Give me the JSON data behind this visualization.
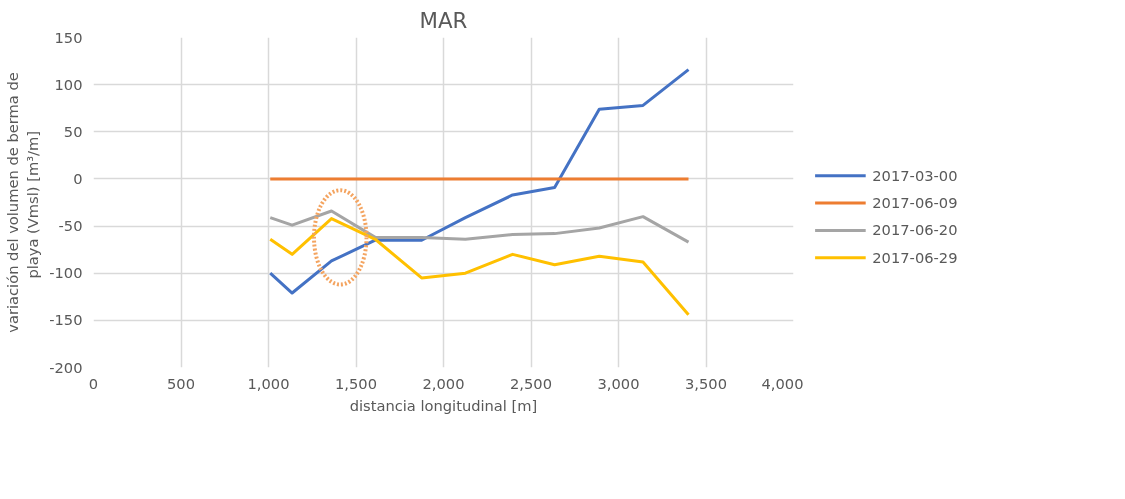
{
  "chart_data": {
    "type": "line",
    "title": "MAR",
    "xlabel": "distancia longitudinal [m]",
    "ylabel": "variación del volumen de berma de playa (Vmsl)  [m³/m]",
    "x": [
      1010,
      1135,
      1360,
      1610,
      1875,
      2125,
      2395,
      2635,
      2890,
      3140,
      3400
    ],
    "series": [
      {
        "name": "2017-03-00",
        "color": "#4472c4",
        "values": [
          -100,
          -121,
          -87,
          -65,
          -65,
          -41,
          -17,
          -9,
          74,
          78,
          116
        ]
      },
      {
        "name": "2017-06-09",
        "color": "#ed7d31",
        "values": [
          0,
          0,
          0,
          0,
          0,
          0,
          0,
          0,
          0,
          0,
          0
        ]
      },
      {
        "name": "2017-06-20",
        "color": "#a5a5a5",
        "values": [
          -41,
          -49,
          -34,
          -62,
          -62,
          -64,
          -59,
          -58,
          -52,
          -40,
          -67
        ]
      },
      {
        "name": "2017-06-29",
        "color": "#ffc000",
        "values": [
          -64,
          -80,
          -42,
          -64,
          -105,
          -100,
          -80,
          -91,
          -82,
          -88,
          -144
        ]
      }
    ],
    "xlim": [
      0,
      4000
    ],
    "ylim": [
      -200,
      150
    ],
    "xticks": [
      0,
      500,
      {
        "value": 1000,
        "label": "1,000"
      },
      {
        "value": 1500,
        "label": "1,500"
      },
      {
        "value": 2000,
        "label": "2,000"
      },
      {
        "value": 2500,
        "label": "2,500"
      },
      {
        "value": 3000,
        "label": "3,000"
      },
      {
        "value": 3500,
        "label": "3,500"
      },
      {
        "value": 4000,
        "label": "4,000"
      }
    ],
    "yticks": [
      -200,
      -150,
      -100,
      -50,
      0,
      50,
      100,
      150
    ],
    "grid": true,
    "legend": "right",
    "marker": "none",
    "line_style": "solid"
  }
}
